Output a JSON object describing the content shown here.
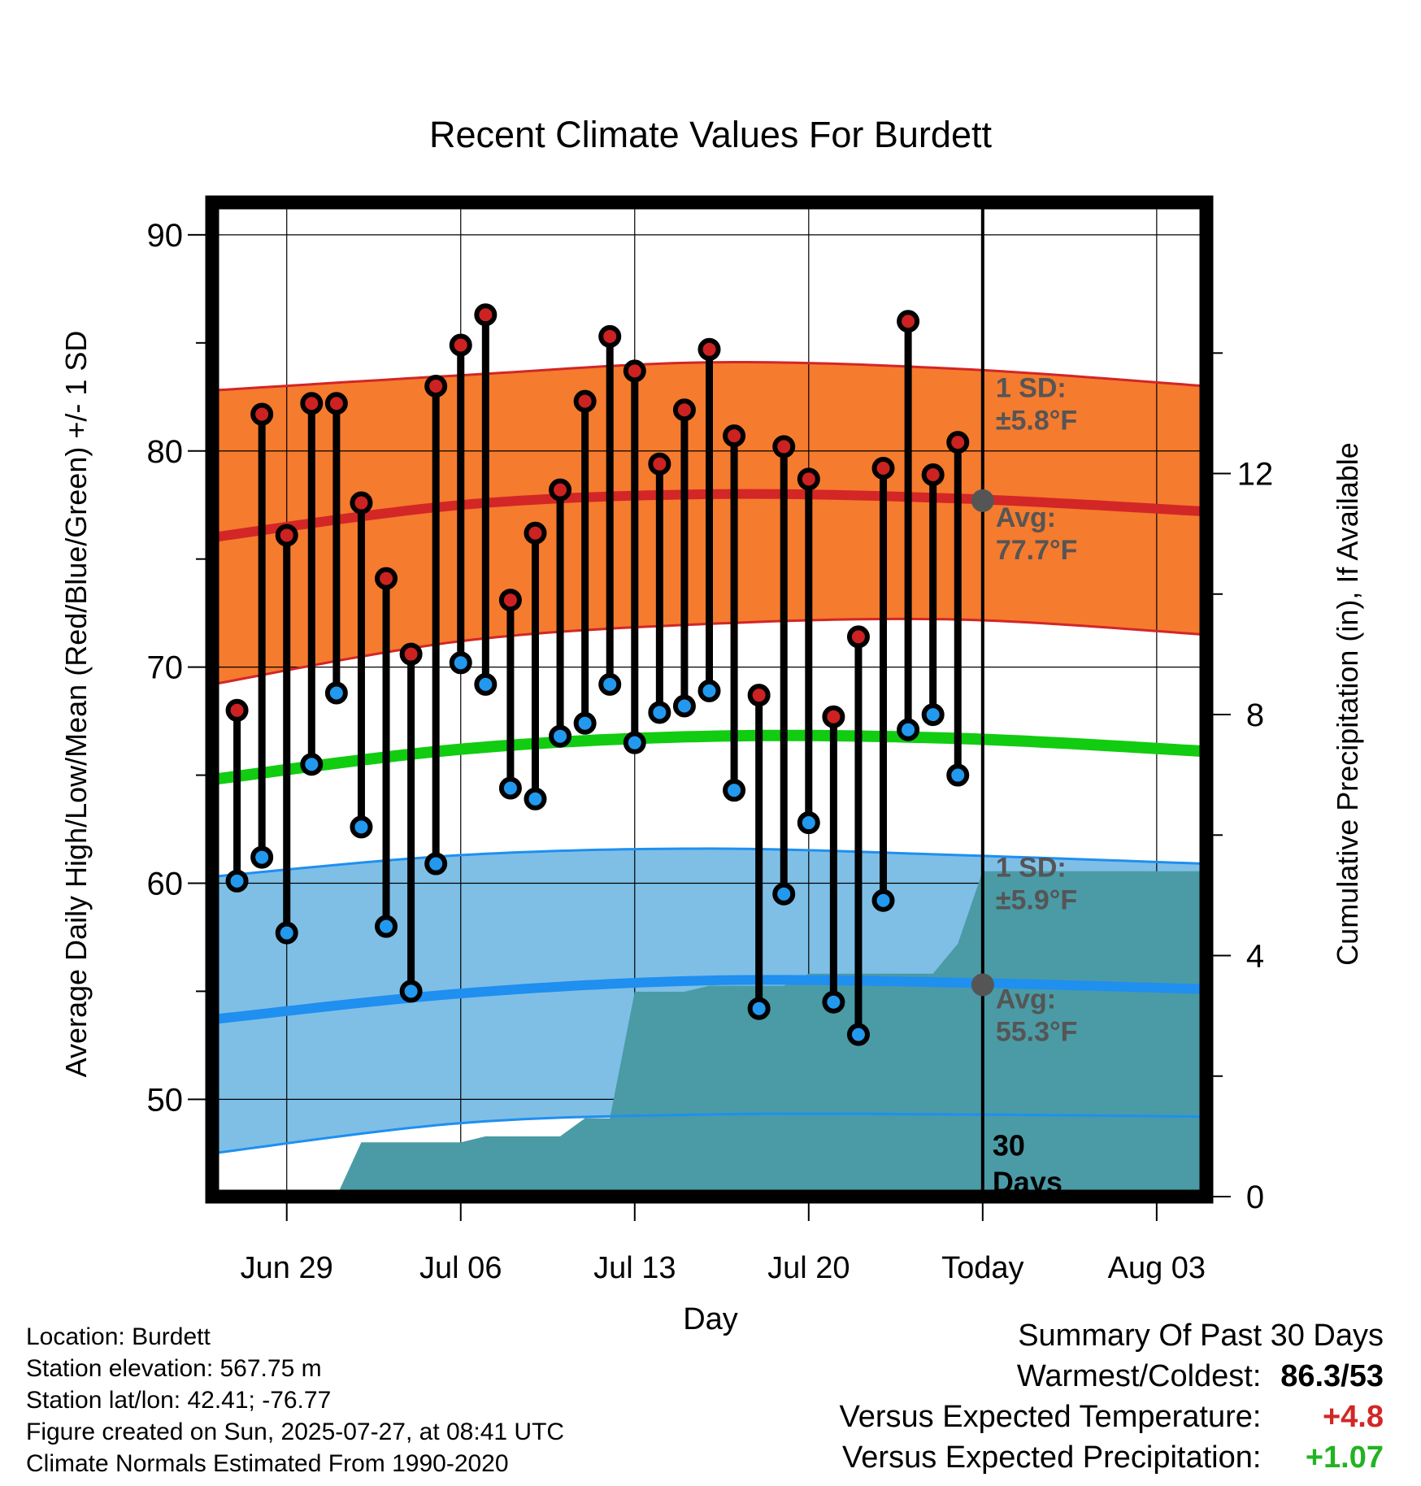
{
  "chart_data": {
    "type": "line",
    "title": "Recent Climate Values For Burdett",
    "xlabel": "Day",
    "ylabel": "Average Daily High/Low/Mean (Red/Blue/Green) +/- 1 SD",
    "y2label": "Cumulative Precipitation (in), If Available",
    "xlim": [
      "Jun 26",
      "Aug 05"
    ],
    "ylim": [
      45.5,
      91.5
    ],
    "y2lim": [
      0,
      16.5
    ],
    "x_tick_labels": [
      "Jun 29",
      "Jul 06",
      "Jul 13",
      "Jul 20",
      "Today",
      "Aug 03"
    ],
    "x_tick_dates": [
      "Jun 29",
      "Jul 06",
      "Jul 13",
      "Jul 20",
      "Jul 27",
      "Aug 03"
    ],
    "y_ticks": [
      50,
      60,
      70,
      80,
      90
    ],
    "y2_ticks": [
      0,
      4,
      8,
      12
    ],
    "grid": true,
    "today": "Jul 27",
    "days_window_label": "30 Days",
    "dates": [
      "Jun 27",
      "Jun 28",
      "Jun 29",
      "Jun 30",
      "Jul 01",
      "Jul 02",
      "Jul 03",
      "Jul 04",
      "Jul 05",
      "Jul 06",
      "Jul 07",
      "Jul 08",
      "Jul 09",
      "Jul 10",
      "Jul 11",
      "Jul 12",
      "Jul 13",
      "Jul 14",
      "Jul 15",
      "Jul 16",
      "Jul 17",
      "Jul 18",
      "Jul 19",
      "Jul 20",
      "Jul 21",
      "Jul 22",
      "Jul 23",
      "Jul 24",
      "Jul 25",
      "Jul 26"
    ],
    "highs": [
      68.0,
      81.7,
      76.1,
      82.2,
      82.2,
      77.6,
      74.1,
      70.6,
      83.0,
      84.9,
      86.3,
      73.1,
      76.2,
      78.2,
      82.3,
      85.3,
      83.7,
      79.4,
      81.9,
      84.7,
      80.7,
      68.7,
      80.2,
      78.7,
      67.7,
      71.4,
      79.2,
      86.0,
      78.9,
      80.4
    ],
    "lows": [
      60.1,
      61.2,
      57.7,
      65.5,
      68.8,
      62.6,
      58.0,
      55.0,
      60.9,
      70.2,
      69.2,
      64.4,
      63.9,
      66.8,
      67.4,
      69.2,
      66.5,
      67.9,
      68.2,
      68.9,
      64.3,
      54.2,
      59.5,
      62.8,
      54.5,
      53.0,
      59.2,
      67.1,
      67.8,
      65.0
    ],
    "normal_high": {
      "dates": [
        "Jun 26",
        "Jul 06",
        "Jul 16",
        "Jul 26",
        "Aug 05"
      ],
      "avg": [
        76.0,
        77.5,
        78.0,
        77.8,
        77.2
      ],
      "upper": [
        82.8,
        83.5,
        84.1,
        83.8,
        83.0
      ],
      "lower": [
        69.2,
        71.2,
        72.0,
        72.2,
        71.5
      ]
    },
    "normal_mean": {
      "dates": [
        "Jun 26",
        "Jul 06",
        "Jul 16",
        "Jul 26",
        "Aug 05"
      ],
      "avg": [
        64.8,
        66.2,
        66.8,
        66.7,
        66.1
      ]
    },
    "normal_low": {
      "dates": [
        "Jun 26",
        "Jul 06",
        "Jul 16",
        "Jul 26",
        "Aug 05"
      ],
      "avg": [
        53.7,
        54.9,
        55.5,
        55.4,
        55.1
      ],
      "upper": [
        60.3,
        61.3,
        61.6,
        61.3,
        60.9
      ],
      "lower": [
        47.5,
        48.9,
        49.3,
        49.3,
        49.2
      ]
    },
    "cumulative_precip": {
      "dates": [
        "Jul 01",
        "Jul 02",
        "Jul 06",
        "Jul 07",
        "Jul 10",
        "Jul 11",
        "Jul 12",
        "Jul 13",
        "Jul 14",
        "Jul 15",
        "Jul 16",
        "Jul 19",
        "Jul 20",
        "Jul 25",
        "Jul 26",
        "Jul 27",
        "Aug 05"
      ],
      "values": [
        0,
        0.9,
        0.9,
        1.0,
        1.0,
        1.3,
        1.3,
        3.4,
        3.4,
        3.4,
        3.5,
        3.5,
        3.7,
        3.7,
        4.2,
        5.4,
        5.4
      ]
    },
    "annotations": {
      "high_sd": {
        "label": "1 SD:",
        "value": "±5.8°F"
      },
      "high_avg": {
        "label": "Avg:",
        "value": "77.7°F"
      },
      "low_sd": {
        "label": "1 SD:",
        "value": "±5.9°F"
      },
      "low_avg": {
        "label": "Avg:",
        "value": "55.3°F"
      }
    },
    "colors": {
      "high_band": "#f57b2e",
      "high_line": "#d32626",
      "low_band": "#7fbfe6",
      "low_line": "#1f8ff0",
      "mean_line": "#11cc11",
      "precip": "#4a9ba6",
      "high_marker": "#cc2222",
      "low_marker": "#2299ee",
      "annotation_text": "#555555"
    }
  },
  "info": {
    "location": "Location: Burdett",
    "elevation": "Station elevation: 567.75 m",
    "latlon": "Station lat/lon: 42.41; -76.77",
    "created": "Figure created on Sun, 2025-07-27, at 08:41 UTC",
    "normals": "Climate Normals Estimated From 1990-2020"
  },
  "summary": {
    "title": "Summary Of Past 30 Days",
    "warmest_label": "Warmest/Coldest:",
    "warmest_value": "86.3/53",
    "temp_label": "Versus Expected Temperature:",
    "temp_value": "+4.8",
    "precip_label": "Versus Expected Precipitation:",
    "precip_value": "+1.07"
  }
}
